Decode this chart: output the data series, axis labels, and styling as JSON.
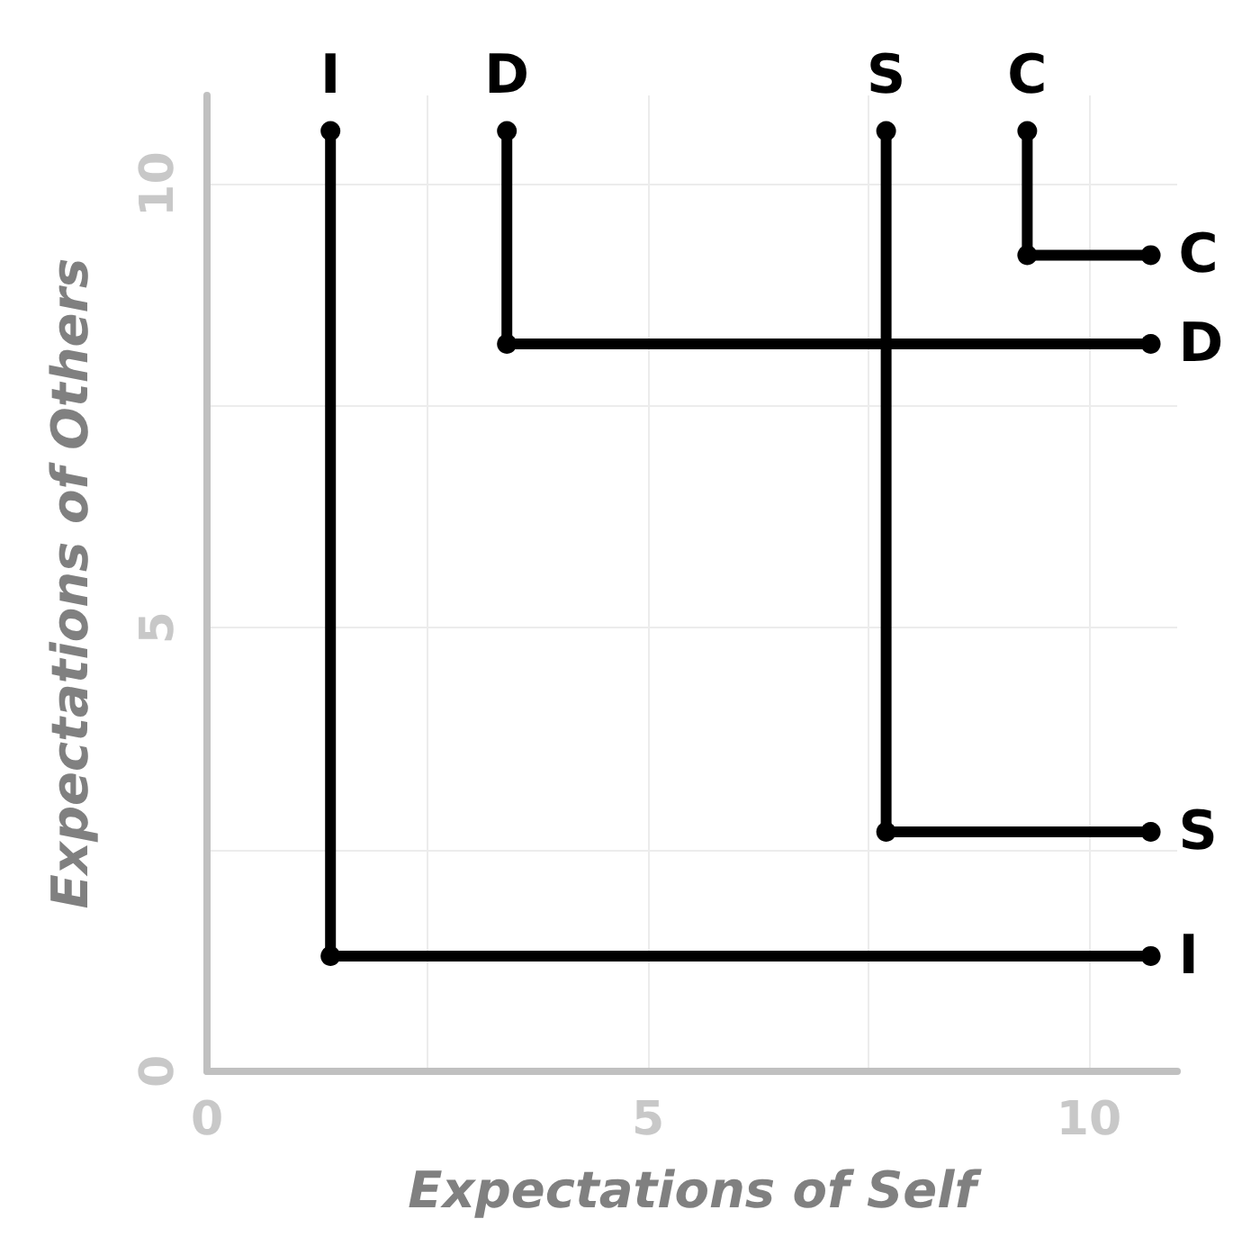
{
  "chart_data": {
    "type": "line",
    "xlabel": "Expectations of Self",
    "ylabel": "Expectations of Others",
    "xlim": [
      0,
      11
    ],
    "ylim": [
      0,
      11
    ],
    "xticks": [
      0,
      {
        "value": 2.5,
        "label": null
      },
      5,
      {
        "value": 7.5,
        "label": null
      },
      10
    ],
    "yticks": [
      0,
      {
        "value": 2.5,
        "label": null
      },
      5,
      {
        "value": 7.5,
        "label": null
      },
      10
    ],
    "grid": true,
    "marker": "circle",
    "line_style": "solid",
    "series": [
      {
        "name": "I",
        "color": "#000000",
        "x": [
          1.4,
          1.4,
          10.7
        ],
        "values": [
          10.6,
          1.3,
          1.3
        ]
      },
      {
        "name": "D",
        "color": "#000000",
        "x": [
          3.4,
          3.4,
          10.7
        ],
        "values": [
          10.6,
          8.2,
          8.2
        ]
      },
      {
        "name": "S",
        "color": "#000000",
        "x": [
          7.7,
          7.7,
          10.7
        ],
        "values": [
          10.6,
          2.7,
          2.7
        ]
      },
      {
        "name": "C",
        "color": "#000000",
        "x": [
          9.3,
          9.3,
          10.7
        ],
        "values": [
          10.6,
          9.2,
          9.2
        ]
      }
    ]
  }
}
